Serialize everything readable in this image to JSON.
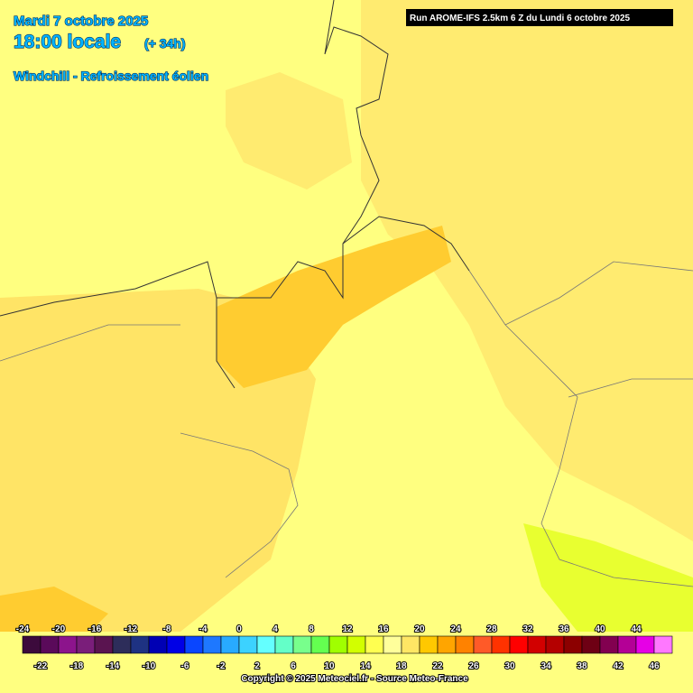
{
  "header": {
    "date": "Mardi 7 octobre 2025",
    "time": "18:00 locale",
    "lead": "(+ 34h)",
    "parameter": "Windchill - Refroissement éolien",
    "run": "Run AROME-IFS 2.5km 6 Z du Lundi 6 octobre 2025"
  },
  "legend": {
    "items": [
      {
        "value": -24,
        "color": "#3c0a3c"
      },
      {
        "value": -22,
        "color": "#5a0a5a"
      },
      {
        "value": -20,
        "color": "#8c148c"
      },
      {
        "value": -18,
        "color": "#7a1e7a"
      },
      {
        "value": -16,
        "color": "#5a1450"
      },
      {
        "value": -14,
        "color": "#2d2d5a"
      },
      {
        "value": -12,
        "color": "#1e3282"
      },
      {
        "value": -10,
        "color": "#0000b4"
      },
      {
        "value": -8,
        "color": "#0000e6"
      },
      {
        "value": -6,
        "color": "#0a46ff"
      },
      {
        "value": -4,
        "color": "#1e78ff"
      },
      {
        "value": -2,
        "color": "#28aaff"
      },
      {
        "value": 0,
        "color": "#3cd2ff"
      },
      {
        "value": 2,
        "color": "#64ffff"
      },
      {
        "value": 4,
        "color": "#64ffc8"
      },
      {
        "value": 6,
        "color": "#78ff8c"
      },
      {
        "value": 8,
        "color": "#64ff50"
      },
      {
        "value": 10,
        "color": "#a0ff00"
      },
      {
        "value": 12,
        "color": "#d2ff00"
      },
      {
        "value": 14,
        "color": "#ffff50"
      },
      {
        "value": 16,
        "color": "#ffff9b"
      },
      {
        "value": 18,
        "color": "#ffe664"
      },
      {
        "value": 20,
        "color": "#ffc800"
      },
      {
        "value": 22,
        "color": "#ffa500"
      },
      {
        "value": 24,
        "color": "#ff8200"
      },
      {
        "value": 26,
        "color": "#ff5a28"
      },
      {
        "value": 28,
        "color": "#ff3200"
      },
      {
        "value": 30,
        "color": "#ff0000"
      },
      {
        "value": 32,
        "color": "#d20000"
      },
      {
        "value": 34,
        "color": "#b40000"
      },
      {
        "value": 36,
        "color": "#8c0000"
      },
      {
        "value": 38,
        "color": "#6e0014"
      },
      {
        "value": 40,
        "color": "#820050"
      },
      {
        "value": 42,
        "color": "#b40096"
      },
      {
        "value": 44,
        "color": "#e600e6"
      },
      {
        "value": 46,
        "color": "#ff78ff"
      }
    ]
  },
  "footer": {
    "copyright": "Copyright © 2025 Meteociel.fr - Source Meteo-France"
  }
}
